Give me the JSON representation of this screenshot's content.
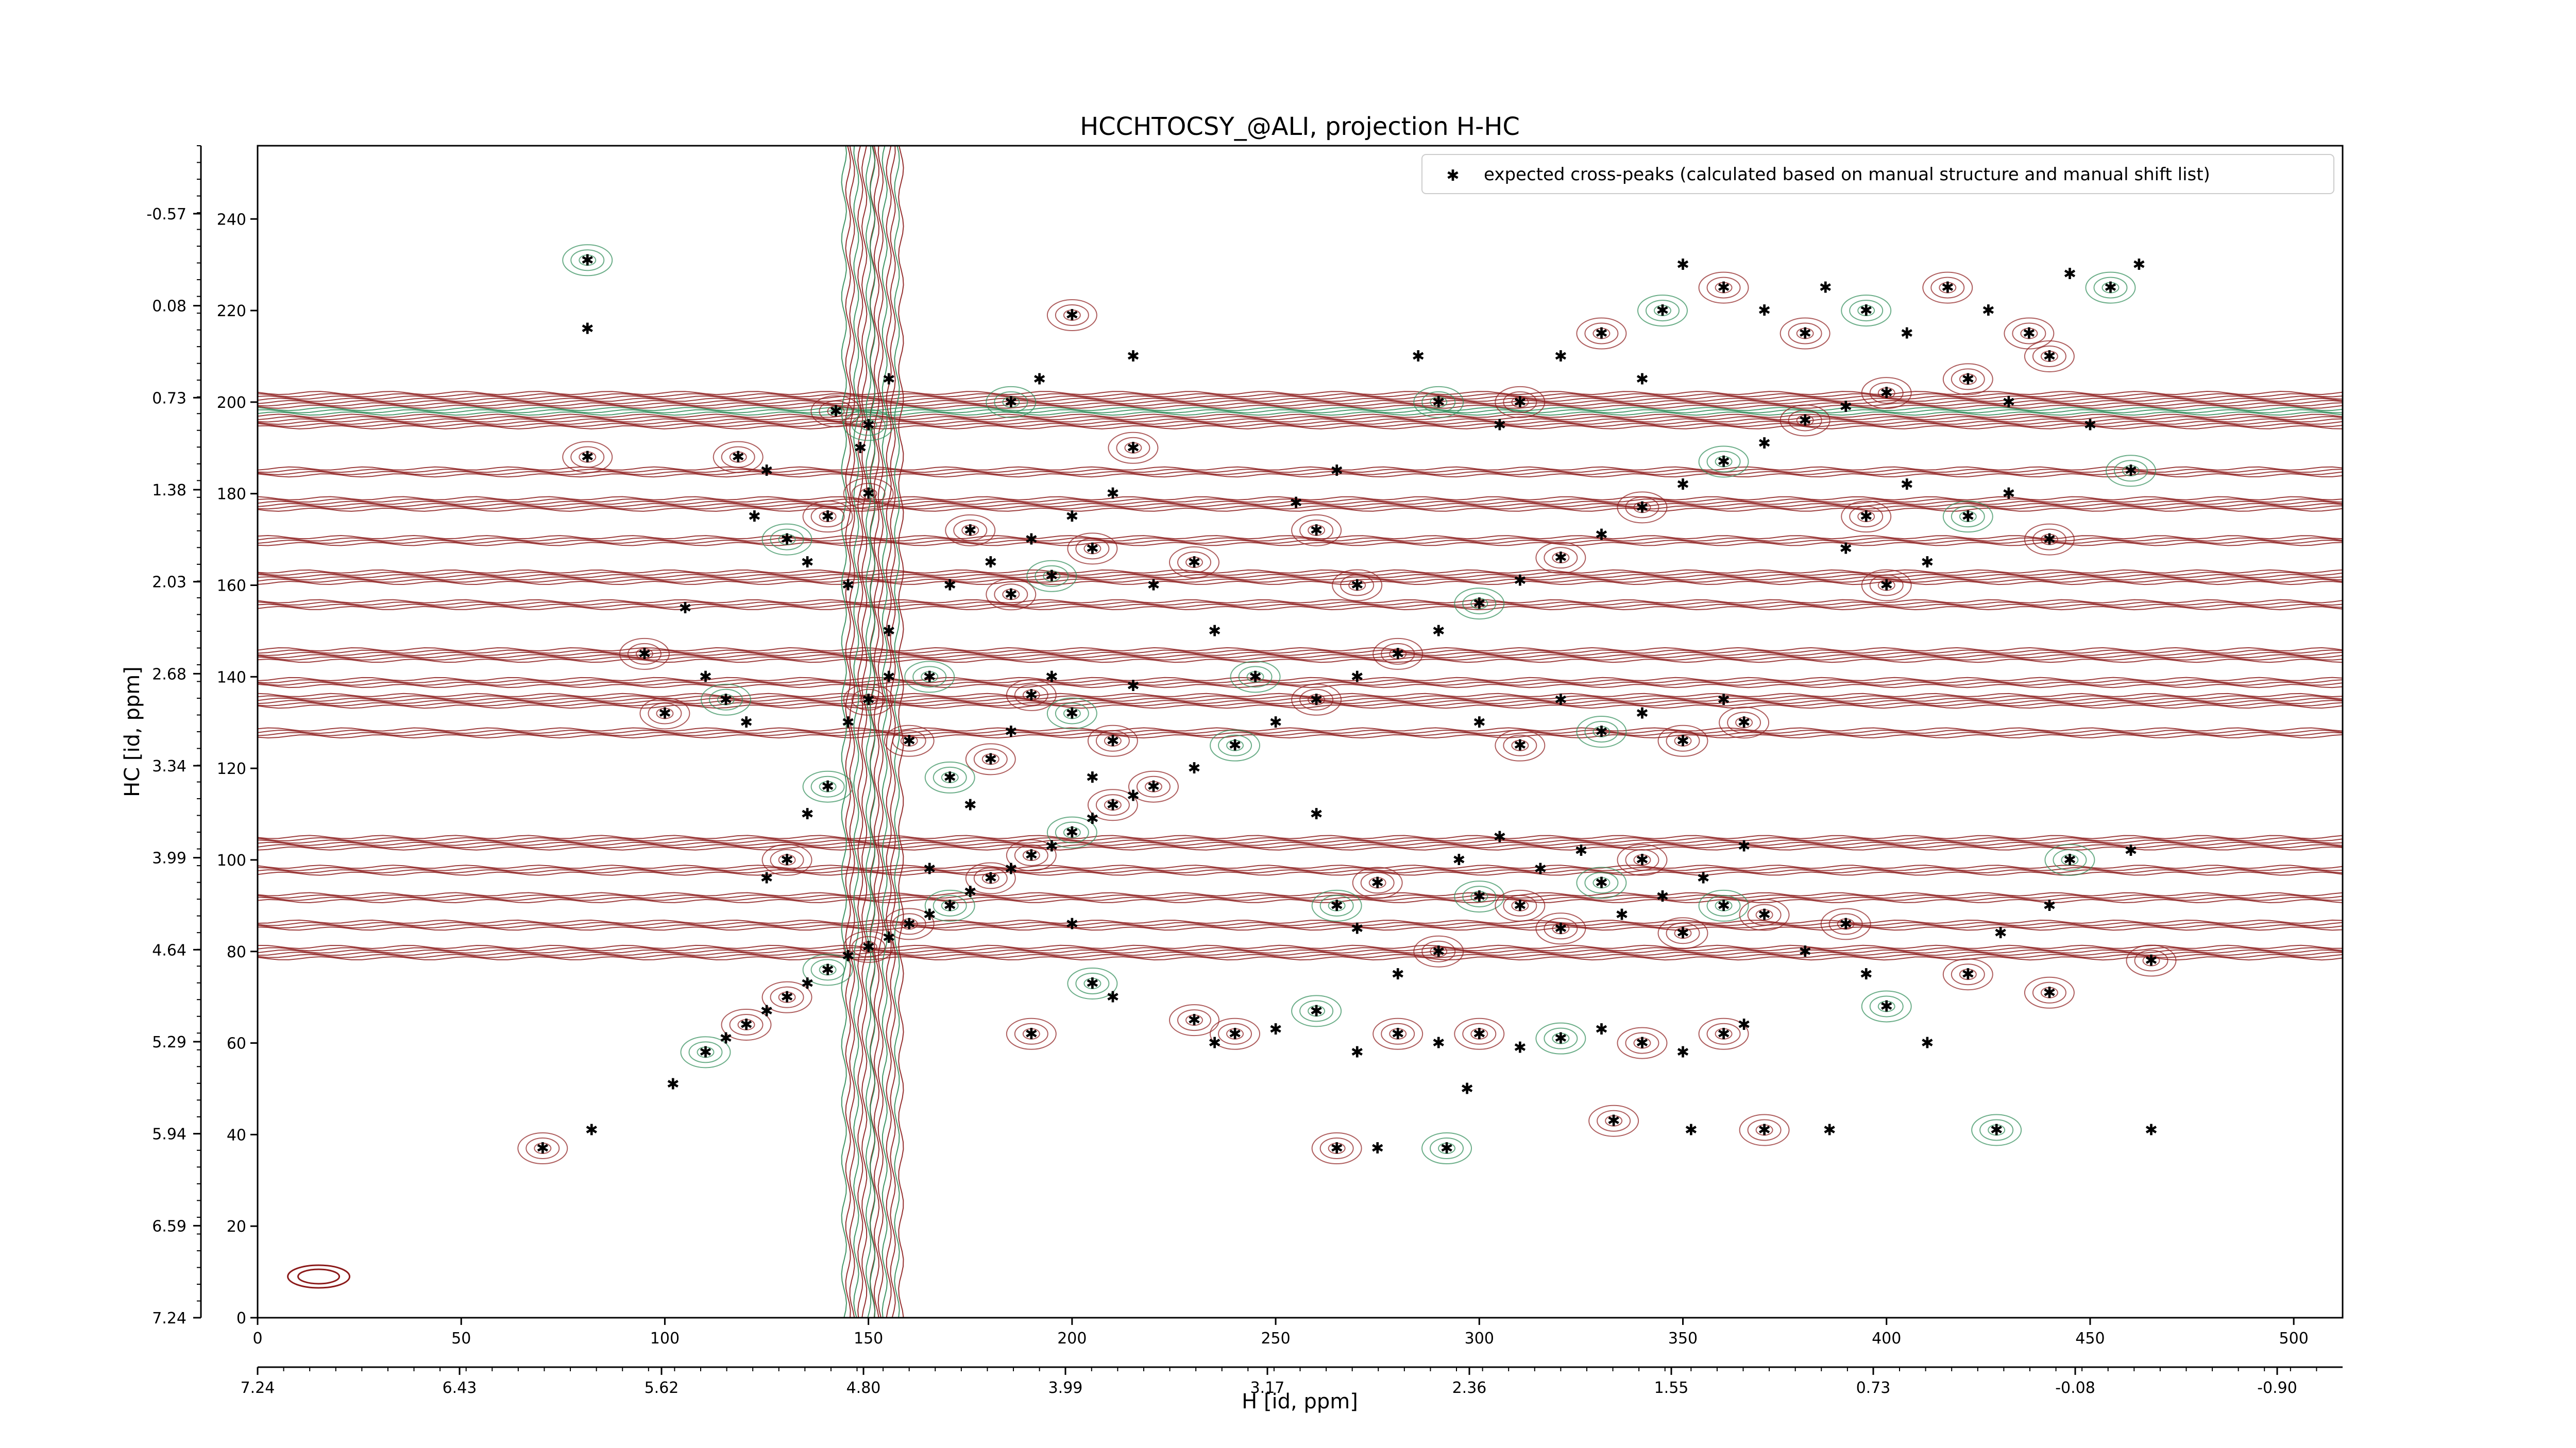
{
  "chart_data": {
    "type": "scatter",
    "title": "HCCHTOCSY_@ALI, projection H-HC",
    "xlabel": "H [id, ppm]",
    "ylabel": "HC [id, ppm]",
    "xlim": [
      0,
      512
    ],
    "ylim": [
      0,
      256
    ],
    "x_ticks": [
      0,
      50,
      100,
      150,
      200,
      250,
      300,
      350,
      400,
      450,
      500
    ],
    "y_ticks": [
      0,
      20,
      40,
      60,
      80,
      100,
      120,
      140,
      160,
      180,
      200,
      220,
      240
    ],
    "x_ppm_ticks": [
      "7.24",
      "6.43",
      "5.62",
      "4.80",
      "3.99",
      "3.17",
      "2.36",
      "1.55",
      "0.73",
      "-0.08",
      "-0.90"
    ],
    "y_ppm_ticks": [
      "7.24",
      "6.59",
      "5.94",
      "5.29",
      "4.64",
      "3.99",
      "3.34",
      "2.68",
      "2.03",
      "1.38",
      "0.73",
      "0.08",
      "-0.57"
    ],
    "legend": {
      "position": "top-right",
      "label": "expected cross-peaks (calculated based on manual structure and manual shift list)"
    },
    "grid": false,
    "colors": {
      "marker": "#0000ff",
      "contour_positive": "#8b1a1a",
      "contour_negative": "#2e8b57"
    },
    "series": [
      {
        "name": "expected cross-peaks (calculated based on manual structure and manual shift list)",
        "points": [
          [
            81,
            231
          ],
          [
            81,
            216
          ],
          [
            81,
            188
          ],
          [
            102,
            51
          ],
          [
            70,
            37
          ],
          [
            82,
            41
          ],
          [
            110,
            58
          ],
          [
            115,
            61
          ],
          [
            120,
            64
          ],
          [
            125,
            67
          ],
          [
            130,
            70
          ],
          [
            135,
            73
          ],
          [
            140,
            76
          ],
          [
            145,
            79
          ],
          [
            150,
            81
          ],
          [
            155,
            83
          ],
          [
            160,
            86
          ],
          [
            165,
            88
          ],
          [
            170,
            90
          ],
          [
            175,
            93
          ],
          [
            180,
            96
          ],
          [
            185,
            98
          ],
          [
            190,
            101
          ],
          [
            195,
            103
          ],
          [
            200,
            106
          ],
          [
            205,
            109
          ],
          [
            210,
            112
          ],
          [
            215,
            114
          ],
          [
            220,
            116
          ],
          [
            230,
            120
          ],
          [
            240,
            125
          ],
          [
            250,
            130
          ],
          [
            260,
            135
          ],
          [
            270,
            140
          ],
          [
            280,
            145
          ],
          [
            290,
            150
          ],
          [
            300,
            156
          ],
          [
            310,
            161
          ],
          [
            320,
            166
          ],
          [
            330,
            171
          ],
          [
            340,
            177
          ],
          [
            350,
            182
          ],
          [
            360,
            187
          ],
          [
            370,
            191
          ],
          [
            380,
            196
          ],
          [
            390,
            199
          ],
          [
            400,
            202
          ],
          [
            125,
            185
          ],
          [
            130,
            170
          ],
          [
            135,
            165
          ],
          [
            140,
            175
          ],
          [
            145,
            160
          ],
          [
            150,
            180
          ],
          [
            155,
            150
          ],
          [
            165,
            140
          ],
          [
            170,
            160
          ],
          [
            175,
            172
          ],
          [
            180,
            165
          ],
          [
            185,
            158
          ],
          [
            190,
            170
          ],
          [
            195,
            162
          ],
          [
            200,
            175
          ],
          [
            205,
            168
          ],
          [
            210,
            180
          ],
          [
            215,
            190
          ],
          [
            220,
            160
          ],
          [
            185,
            200
          ],
          [
            192,
            205
          ],
          [
            200,
            219
          ],
          [
            215,
            210
          ],
          [
            230,
            165
          ],
          [
            235,
            150
          ],
          [
            245,
            140
          ],
          [
            255,
            178
          ],
          [
            260,
            172
          ],
          [
            265,
            185
          ],
          [
            270,
            160
          ],
          [
            285,
            210
          ],
          [
            290,
            200
          ],
          [
            305,
            195
          ],
          [
            310,
            200
          ],
          [
            320,
            210
          ],
          [
            330,
            215
          ],
          [
            340,
            205
          ],
          [
            345,
            220
          ],
          [
            350,
            230
          ],
          [
            360,
            225
          ],
          [
            370,
            220
          ],
          [
            380,
            215
          ],
          [
            385,
            225
          ],
          [
            395,
            220
          ],
          [
            405,
            215
          ],
          [
            415,
            225
          ],
          [
            425,
            220
          ],
          [
            435,
            215
          ],
          [
            445,
            228
          ],
          [
            455,
            225
          ],
          [
            462,
            230
          ],
          [
            420,
            205
          ],
          [
            430,
            200
          ],
          [
            440,
            210
          ],
          [
            450,
            195
          ],
          [
            460,
            185
          ],
          [
            405,
            182
          ],
          [
            395,
            175
          ],
          [
            390,
            168
          ],
          [
            400,
            160
          ],
          [
            410,
            165
          ],
          [
            420,
            175
          ],
          [
            430,
            180
          ],
          [
            440,
            170
          ],
          [
            300,
            130
          ],
          [
            310,
            125
          ],
          [
            320,
            135
          ],
          [
            330,
            128
          ],
          [
            340,
            132
          ],
          [
            350,
            126
          ],
          [
            360,
            135
          ],
          [
            365,
            130
          ],
          [
            260,
            110
          ],
          [
            265,
            90
          ],
          [
            270,
            85
          ],
          [
            275,
            95
          ],
          [
            280,
            75
          ],
          [
            290,
            80
          ],
          [
            295,
            100
          ],
          [
            300,
            92
          ],
          [
            305,
            105
          ],
          [
            310,
            90
          ],
          [
            315,
            98
          ],
          [
            320,
            85
          ],
          [
            325,
            102
          ],
          [
            330,
            95
          ],
          [
            335,
            88
          ],
          [
            340,
            100
          ],
          [
            345,
            92
          ],
          [
            350,
            84
          ],
          [
            355,
            96
          ],
          [
            360,
            90
          ],
          [
            365,
            103
          ],
          [
            370,
            88
          ],
          [
            380,
            80
          ],
          [
            390,
            86
          ],
          [
            395,
            75
          ],
          [
            400,
            68
          ],
          [
            410,
            60
          ],
          [
            230,
            65
          ],
          [
            235,
            60
          ],
          [
            240,
            62
          ],
          [
            250,
            63
          ],
          [
            260,
            67
          ],
          [
            270,
            58
          ],
          [
            280,
            62
          ],
          [
            290,
            60
          ],
          [
            300,
            62
          ],
          [
            310,
            59
          ],
          [
            320,
            61
          ],
          [
            330,
            63
          ],
          [
            340,
            60
          ],
          [
            350,
            58
          ],
          [
            360,
            62
          ],
          [
            365,
            64
          ],
          [
            205,
            73
          ],
          [
            210,
            70
          ],
          [
            190,
            62
          ],
          [
            200,
            86
          ],
          [
            265,
            37
          ],
          [
            275,
            37
          ],
          [
            292,
            37
          ],
          [
            297,
            50
          ],
          [
            333,
            43
          ],
          [
            352,
            41
          ],
          [
            370,
            41
          ],
          [
            386,
            41
          ],
          [
            427,
            41
          ],
          [
            465,
            41
          ],
          [
            420,
            75
          ],
          [
            428,
            84
          ],
          [
            440,
            71
          ],
          [
            440,
            90
          ],
          [
            445,
            100
          ],
          [
            460,
            102
          ],
          [
            465,
            78
          ],
          [
            125,
            96
          ],
          [
            130,
            100
          ],
          [
            135,
            110
          ],
          [
            140,
            116
          ],
          [
            145,
            130
          ],
          [
            150,
            135
          ],
          [
            155,
            140
          ],
          [
            160,
            126
          ],
          [
            165,
            98
          ],
          [
            170,
            118
          ],
          [
            175,
            112
          ],
          [
            180,
            122
          ],
          [
            185,
            128
          ],
          [
            190,
            136
          ],
          [
            195,
            140
          ],
          [
            200,
            132
          ],
          [
            205,
            118
          ],
          [
            210,
            126
          ],
          [
            215,
            138
          ],
          [
            100,
            132
          ],
          [
            110,
            140
          ],
          [
            115,
            135
          ],
          [
            120,
            130
          ],
          [
            95,
            145
          ],
          [
            105,
            155
          ],
          [
            118,
            188
          ],
          [
            122,
            175
          ],
          [
            150,
            195
          ],
          [
            155,
            205
          ],
          [
            142,
            198
          ],
          [
            148,
            190
          ]
        ]
      }
    ]
  }
}
